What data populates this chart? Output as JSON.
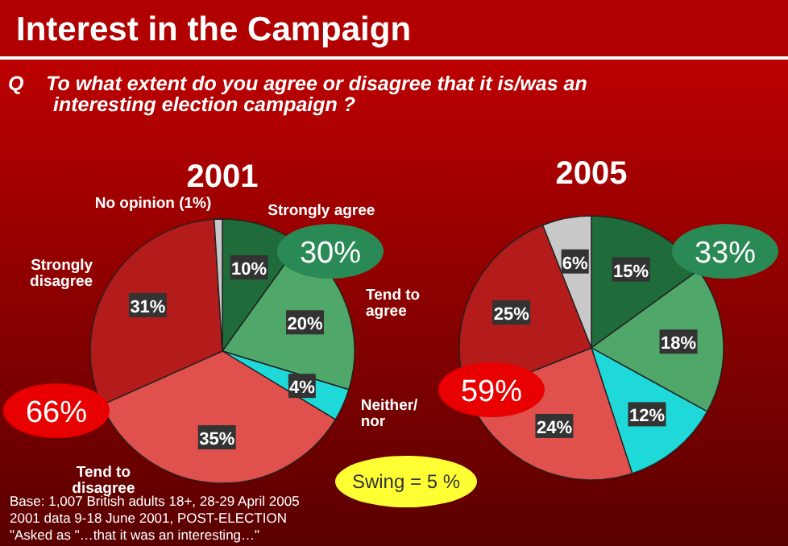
{
  "chart_data": [
    {
      "type": "other",
      "title": "Interest in the Campaign",
      "subtitle": "Q To what extent do you agree or disagree that it is/was an interesting election campaign ?",
      "annotations": [
        "Swing = 5 %",
        "Base: 1,007 British adults 18+, 28-29 April 2005",
        "2001 data 9-18 June 2001, POST-ELECTION",
        "\"Asked as \"…that it was an interesting…\""
      ]
    },
    {
      "type": "pie",
      "title": "2001",
      "categories": [
        "Strongly agree",
        "Tend to agree",
        "Neither/ nor",
        "Tend to disagree",
        "Strongly disagree",
        "No opinion (1%)"
      ],
      "values": [
        10,
        20,
        4,
        35,
        31,
        1
      ],
      "colors": [
        "#1f6b3a",
        "#4fa86a",
        "#1fd8d8",
        "#e0504c",
        "#b41c1c",
        "#c8c8c8"
      ],
      "value_labels": [
        "10%",
        "20%",
        "4%",
        "35%",
        "31%",
        null
      ],
      "annotations": [
        "30%",
        "66%"
      ]
    },
    {
      "type": "pie",
      "title": "2005",
      "categories": [
        null,
        null,
        null,
        null,
        null,
        null
      ],
      "values": [
        15,
        18,
        12,
        24,
        25,
        6
      ],
      "colors": [
        "#1f6b3a",
        "#4fa86a",
        "#1fd8d8",
        "#e0504c",
        "#b41c1c",
        "#c8c8c8"
      ],
      "value_labels": [
        "15%",
        "18%",
        "12%",
        "24%",
        "25%",
        "6%"
      ],
      "annotations": [
        "33%",
        "59%"
      ]
    }
  ]
}
